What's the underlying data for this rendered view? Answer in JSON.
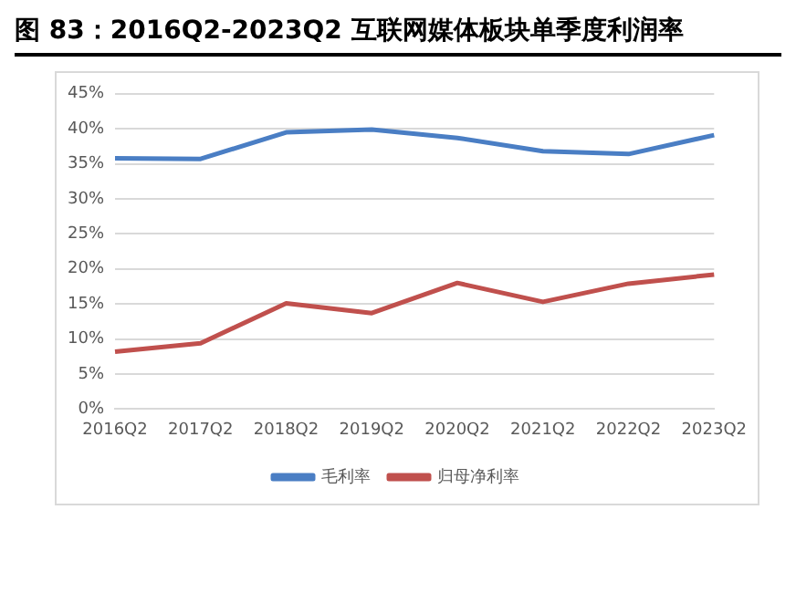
{
  "chart_data": {
    "type": "line",
    "title": "图 83：2016Q2-2023Q2 互联网媒体板块单季度利润率",
    "categories": [
      "2016Q2",
      "2017Q2",
      "2018Q2",
      "2019Q2",
      "2020Q2",
      "2021Q2",
      "2022Q2",
      "2023Q2"
    ],
    "series": [
      {
        "name": "毛利率",
        "color": "#4a7ec4",
        "values": [
          35.8,
          35.7,
          39.5,
          39.9,
          38.7,
          36.8,
          36.4,
          39.1
        ]
      },
      {
        "name": "归母净利率",
        "color": "#c0504d",
        "values": [
          8.2,
          9.4,
          15.1,
          13.7,
          18.0,
          15.3,
          17.9,
          19.2
        ]
      }
    ],
    "ylim": [
      0,
      45
    ],
    "yticks": [
      {
        "value": 0,
        "label": "0%"
      },
      {
        "value": 5,
        "label": "5%"
      },
      {
        "value": 10,
        "label": "10%"
      },
      {
        "value": 15,
        "label": "15%"
      },
      {
        "value": 20,
        "label": "20%"
      },
      {
        "value": 25,
        "label": "25%"
      },
      {
        "value": 30,
        "label": "30%"
      },
      {
        "value": 35,
        "label": "35%"
      },
      {
        "value": 40,
        "label": "40%"
      },
      {
        "value": 45,
        "label": "45%"
      }
    ],
    "grid": "y",
    "legend": "bottom",
    "marker": "none",
    "line_style": "solid"
  }
}
